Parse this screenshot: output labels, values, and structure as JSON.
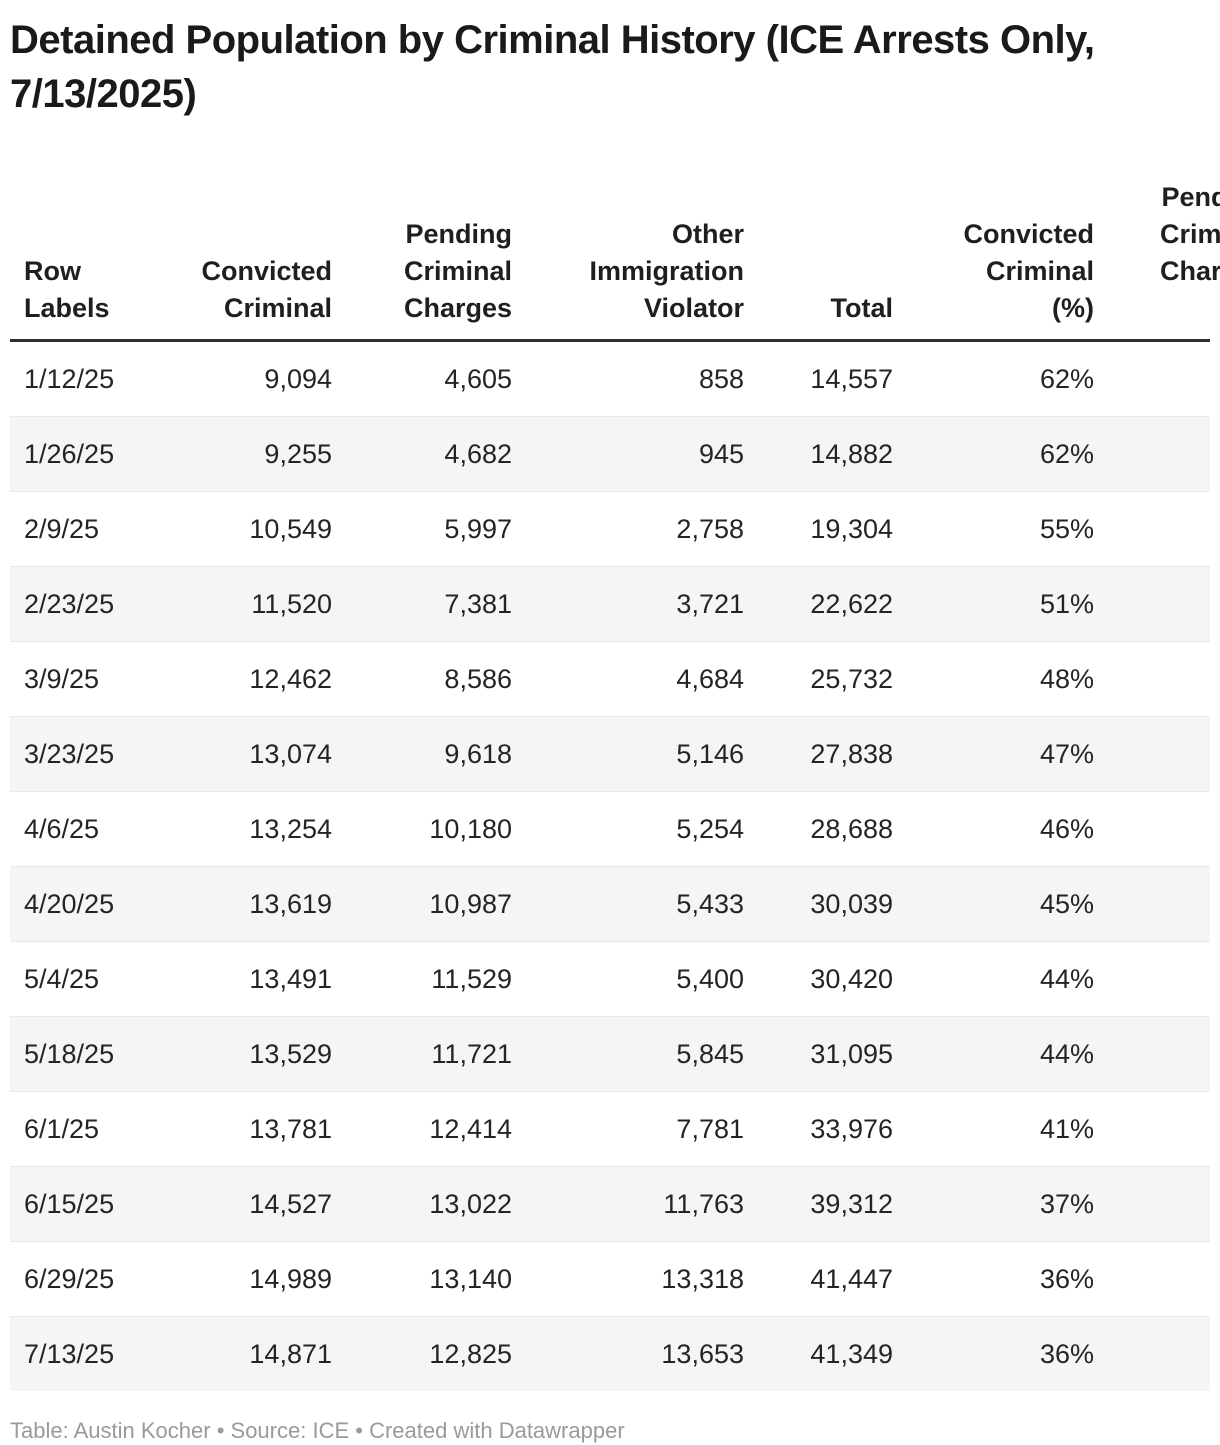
{
  "title": "Detained Population by Criminal History (ICE Arrests Only, 7/13/2025)",
  "title_lines": [
    "Detained Population by Criminal History (ICE Arrests Only,",
    "7/13/2025)"
  ],
  "colors": {
    "title_text": "#1a1a1a",
    "body_text": "#242424",
    "header_border": "#2f2f2f",
    "row_separator": "#e8e8e8",
    "row_stripe": "#f5f5f5",
    "footer_text": "#9a9a9a",
    "background": "#ffffff"
  },
  "table": {
    "columns": [
      {
        "label": "Row Labels",
        "lines": [
          "Row",
          "Labels"
        ],
        "align": "left"
      },
      {
        "label": "Convicted Criminal",
        "lines": [
          "Convicted",
          "Criminal"
        ],
        "align": "right"
      },
      {
        "label": "Pending Criminal Charges",
        "lines": [
          "Pending",
          "Criminal",
          "Charges"
        ],
        "align": "right"
      },
      {
        "label": "Other Immigration Violator",
        "lines": [
          "Other",
          "Immigration",
          "Violator"
        ],
        "align": "right"
      },
      {
        "label": "Total",
        "lines": [
          "Total"
        ],
        "align": "right"
      },
      {
        "label": "Convicted Criminal (%)",
        "lines": [
          "Convicted",
          "Criminal",
          "(%)"
        ],
        "align": "right"
      },
      {
        "label": "Pending Criminal Charges (%)",
        "lines": [
          "Pending",
          "Criminal",
          "Charges",
          "(%)"
        ],
        "align": "right"
      }
    ],
    "rows": [
      {
        "cells": [
          "1/12/25",
          "9,094",
          "4,605",
          "858",
          "14,557",
          "62%",
          ""
        ]
      },
      {
        "cells": [
          "1/26/25",
          "9,255",
          "4,682",
          "945",
          "14,882",
          "62%",
          ""
        ]
      },
      {
        "cells": [
          "2/9/25",
          "10,549",
          "5,997",
          "2,758",
          "19,304",
          "55%",
          ""
        ]
      },
      {
        "cells": [
          "2/23/25",
          "11,520",
          "7,381",
          "3,721",
          "22,622",
          "51%",
          ""
        ]
      },
      {
        "cells": [
          "3/9/25",
          "12,462",
          "8,586",
          "4,684",
          "25,732",
          "48%",
          ""
        ]
      },
      {
        "cells": [
          "3/23/25",
          "13,074",
          "9,618",
          "5,146",
          "27,838",
          "47%",
          ""
        ]
      },
      {
        "cells": [
          "4/6/25",
          "13,254",
          "10,180",
          "5,254",
          "28,688",
          "46%",
          ""
        ]
      },
      {
        "cells": [
          "4/20/25",
          "13,619",
          "10,987",
          "5,433",
          "30,039",
          "45%",
          ""
        ]
      },
      {
        "cells": [
          "5/4/25",
          "13,491",
          "11,529",
          "5,400",
          "30,420",
          "44%",
          ""
        ]
      },
      {
        "cells": [
          "5/18/25",
          "13,529",
          "11,721",
          "5,845",
          "31,095",
          "44%",
          ""
        ]
      },
      {
        "cells": [
          "6/1/25",
          "13,781",
          "12,414",
          "7,781",
          "33,976",
          "41%",
          ""
        ]
      },
      {
        "cells": [
          "6/15/25",
          "14,527",
          "13,022",
          "11,763",
          "39,312",
          "37%",
          ""
        ]
      },
      {
        "cells": [
          "6/29/25",
          "14,989",
          "13,140",
          "13,318",
          "41,447",
          "36%",
          ""
        ]
      },
      {
        "cells": [
          "7/13/25",
          "14,871",
          "12,825",
          "13,653",
          "41,349",
          "36%",
          ""
        ]
      }
    ]
  },
  "footer": {
    "parts": [
      {
        "text": "Table: ",
        "name": "footer-table-label",
        "interactable": false
      },
      {
        "text": "Austin Kocher",
        "name": "footer-author-link",
        "interactable": true
      },
      {
        "text": " • ",
        "name": "footer-separator",
        "interactable": false
      },
      {
        "text": "Source: ",
        "name": "footer-source-label",
        "interactable": false
      },
      {
        "text": "ICE",
        "name": "footer-source-link",
        "interactable": true
      },
      {
        "text": " • ",
        "name": "footer-separator",
        "interactable": false
      },
      {
        "text": "Created with Datawrapper",
        "name": "footer-credit-link",
        "interactable": true
      }
    ]
  },
  "chart_data": {
    "type": "table",
    "title": "Detained Population by Criminal History (ICE Arrests Only, 7/13/2025)",
    "categories": [
      "1/12/25",
      "1/26/25",
      "2/9/25",
      "2/23/25",
      "3/9/25",
      "3/23/25",
      "4/6/25",
      "4/20/25",
      "5/4/25",
      "5/18/25",
      "6/1/25",
      "6/15/25",
      "6/29/25",
      "7/13/25"
    ],
    "series": [
      {
        "name": "Convicted Criminal",
        "values": [
          9094,
          9255,
          10549,
          11520,
          12462,
          13074,
          13254,
          13619,
          13491,
          13529,
          13781,
          14527,
          14989,
          14871
        ]
      },
      {
        "name": "Pending Criminal Charges",
        "values": [
          4605,
          4682,
          5997,
          7381,
          8586,
          9618,
          10180,
          10987,
          11529,
          11721,
          12414,
          13022,
          13140,
          12825
        ]
      },
      {
        "name": "Other Immigration Violator",
        "values": [
          858,
          945,
          2758,
          3721,
          4684,
          5146,
          5254,
          5433,
          5400,
          5845,
          7781,
          11763,
          13318,
          13653
        ]
      },
      {
        "name": "Total",
        "values": [
          14557,
          14882,
          19304,
          22622,
          25732,
          27838,
          28688,
          30039,
          30420,
          31095,
          33976,
          39312,
          41447,
          41349
        ]
      },
      {
        "name": "Convicted Criminal (%)",
        "values": [
          62,
          62,
          55,
          51,
          48,
          47,
          46,
          45,
          44,
          44,
          41,
          37,
          36,
          36
        ]
      }
    ]
  }
}
